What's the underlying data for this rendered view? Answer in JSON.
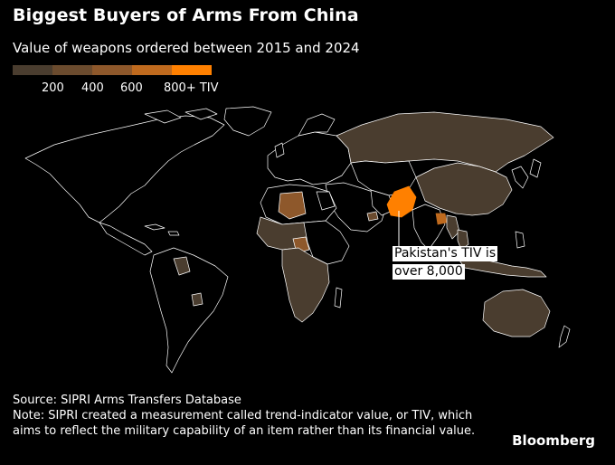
{
  "header": {
    "title": "Biggest Buyers of Arms From China",
    "subtitle": "Value of weapons ordered between 2015 and 2024"
  },
  "legend": {
    "colors": [
      "#4a3d2f",
      "#6b4b2e",
      "#8e582b",
      "#bf6a1e",
      "#ff8000"
    ],
    "ticks": [
      "200",
      "400",
      "600",
      "800+ TIV"
    ]
  },
  "annotation": {
    "line1": "Pakistan's TIV is",
    "line2": "over 8,000"
  },
  "footer": {
    "source": "Source: SIPRI Arms Transfers Database",
    "note": "Note: SIPRI created a measurement called trend-indicator value, or TIV, which aims to reflect the military capability of an item rather than its financial value.",
    "brand": "Bloomberg"
  }
}
